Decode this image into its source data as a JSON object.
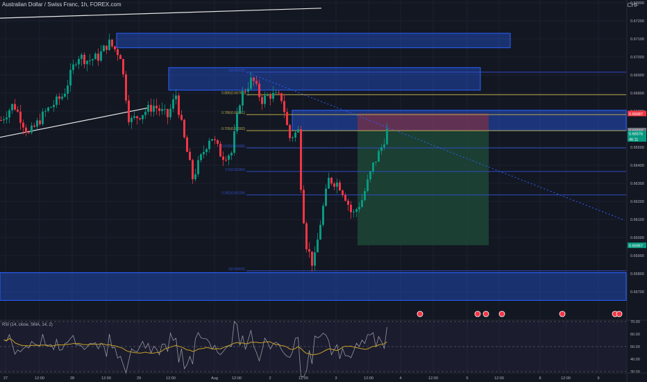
{
  "header": {
    "symbol_title": "Australian Dollar / Swiss Franc, 1h, FOREX.com",
    "currency": "CHF"
  },
  "colors": {
    "background": "#131722",
    "up": "#089981",
    "down": "#f23645",
    "zone_blue": "#2962ff",
    "fib_yellow": "#b8a94a",
    "fib_blue": "#2f4ec2",
    "rsi_line": "#9598a1",
    "rsi_ma": "#c9a227",
    "target_green": "#1e4a37",
    "stop_red": "#7a3048"
  },
  "price_axis": {
    "ticks": [
      "0.67300",
      "0.67200",
      "0.67100",
      "0.67000",
      "0.66900",
      "0.66800",
      "0.66700",
      "0.66600",
      "0.66500",
      "0.66400",
      "0.66300",
      "0.66200",
      "0.66100",
      "0.66000",
      "0.65900",
      "0.65800",
      "0.65700"
    ],
    "badges": [
      {
        "label": "0.66687",
        "color": "#f23645"
      },
      {
        "label": "0.66592",
        "color": "#787b86"
      },
      {
        "label": "0.66576",
        "color": "#089981"
      },
      {
        "label": "46:11",
        "color": "#089981"
      },
      {
        "label": "0.65957",
        "color": "#089981"
      }
    ]
  },
  "fib_labels": [
    {
      "label": "1(0.66916)",
      "color": "#2f4ec2"
    },
    {
      "label": "0.886(0.66791)",
      "color": "#b8a94a"
    },
    {
      "label": "0.786(0.66681)",
      "color": "#b8a94a"
    },
    {
      "label": "0.705(0.66592)",
      "color": "#b8a94a"
    },
    {
      "label": "0.618(0.66496)",
      "color": "#2f4ec2"
    },
    {
      "label": "0.5(0.66366)",
      "color": "#2f4ec2"
    },
    {
      "label": "0.382(0.66236)",
      "color": "#2f4ec2"
    },
    {
      "label": "0(0.65816)",
      "color": "#2f4ec2"
    }
  ],
  "time_axis": {
    "labels": [
      "27",
      "12:00",
      "28",
      "12:00",
      "29",
      "12:00",
      "Aug",
      "12:00",
      "2",
      "12:00",
      "3",
      "12:00",
      "4",
      "12:00",
      "5",
      "12:00",
      "8",
      "12:00",
      "9"
    ]
  },
  "rsi": {
    "legend": "RSI (14, close, SMA, 14, 2)",
    "ticks": [
      "70.00",
      "60.00",
      "50.00",
      "40.00",
      "30.00"
    ]
  },
  "events": {
    "count": 7
  }
}
